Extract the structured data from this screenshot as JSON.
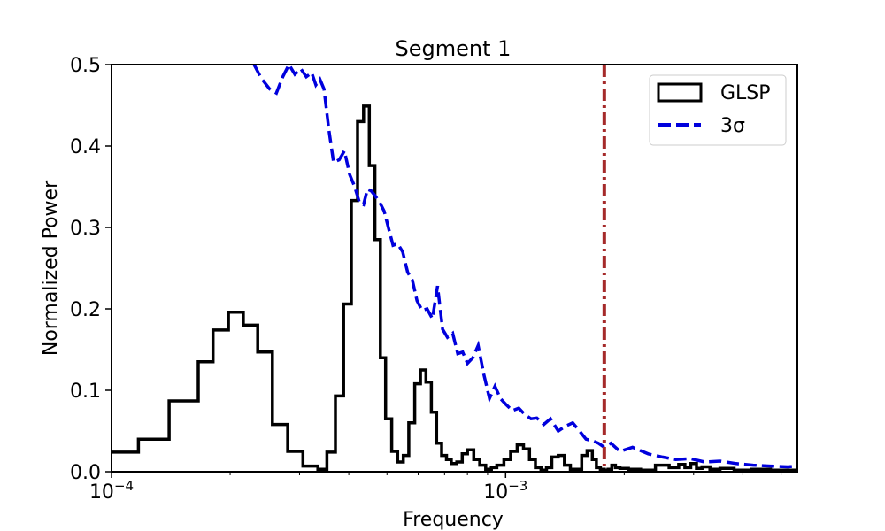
{
  "chart_data": {
    "type": "line",
    "title": "Segment 1",
    "xlabel": "Frequency",
    "ylabel": "Normalized Power",
    "x_scale": "log",
    "xlim": [
      0.0001,
      0.0055
    ],
    "ylim": [
      0,
      0.5
    ],
    "x_ticks": [
      {
        "value": 0.0001,
        "base": "10",
        "exp": "−4"
      },
      {
        "value": 0.001,
        "base": "10",
        "exp": "−3"
      }
    ],
    "y_ticks": [
      0.0,
      0.1,
      0.2,
      0.3,
      0.4,
      0.5
    ],
    "y_tick_labels": [
      "0.0",
      "0.1",
      "0.2",
      "0.3",
      "0.4",
      "0.5"
    ],
    "grid": false,
    "legend_position": "top-right",
    "series": [
      {
        "name": "GLSP",
        "style": "step",
        "color": "#000000",
        "x": [
          0.0001,
          0.000108,
          0.000117,
          0.000128,
          0.00014,
          0.000152,
          0.000166,
          0.000181,
          0.000198,
          0.000216,
          0.000235,
          0.000256,
          0.00028,
          0.000306,
          0.000334,
          0.000352,
          0.00037,
          0.000388,
          0.000406,
          0.000421,
          0.000436,
          0.000451,
          0.000466,
          0.000481,
          0.000496,
          0.000514,
          0.000532,
          0.00055,
          0.000568,
          0.000588,
          0.000608,
          0.000628,
          0.000648,
          0.000668,
          0.000688,
          0.000708,
          0.000728,
          0.000752,
          0.000776,
          0.0008,
          0.00083,
          0.00086,
          0.00089,
          0.00092,
          0.00095,
          0.00099,
          0.00103,
          0.00107,
          0.00111,
          0.00115,
          0.00119,
          0.00123,
          0.00127,
          0.00131,
          0.00136,
          0.00141,
          0.00146,
          0.00151,
          0.00156,
          0.00161,
          0.00166,
          0.0017,
          0.00174,
          0.00178,
          0.00182,
          0.00186,
          0.0019,
          0.00195,
          0.00205,
          0.0022,
          0.0024,
          0.0026,
          0.00275,
          0.00285,
          0.00295,
          0.00305,
          0.00315,
          0.0033,
          0.0035,
          0.0038,
          0.0042,
          0.0047,
          0.0055
        ],
        "y": [
          0.024,
          0.024,
          0.04,
          0.04,
          0.087,
          0.087,
          0.135,
          0.174,
          0.196,
          0.18,
          0.147,
          0.058,
          0.025,
          0.007,
          0.003,
          0.024,
          0.093,
          0.206,
          0.333,
          0.43,
          0.449,
          0.376,
          0.285,
          0.14,
          0.065,
          0.025,
          0.012,
          0.02,
          0.06,
          0.108,
          0.125,
          0.11,
          0.073,
          0.035,
          0.02,
          0.015,
          0.01,
          0.012,
          0.022,
          0.027,
          0.015,
          0.008,
          0.003,
          0.005,
          0.008,
          0.015,
          0.025,
          0.033,
          0.028,
          0.015,
          0.005,
          0.002,
          0.005,
          0.018,
          0.02,
          0.008,
          0.003,
          0.003,
          0.02,
          0.026,
          0.015,
          0.005,
          0.003,
          0.002,
          0.003,
          0.008,
          0.005,
          0.004,
          0.003,
          0.002,
          0.008,
          0.005,
          0.009,
          0.005,
          0.01,
          0.004,
          0.006,
          0.003,
          0.004,
          0.002,
          0.003,
          0.002,
          0.002
        ]
      },
      {
        "name": "3σ",
        "style": "dashed",
        "color": "#0000dd",
        "x": [
          0.00023,
          0.00024,
          0.000252,
          0.000262,
          0.000272,
          0.000282,
          0.000292,
          0.000302,
          0.000312,
          0.000322,
          0.00033,
          0.000338,
          0.000346,
          0.000356,
          0.000366,
          0.000378,
          0.00039,
          0.000402,
          0.000414,
          0.000426,
          0.000436,
          0.000446,
          0.000456,
          0.000468,
          0.00048,
          0.000492,
          0.000504,
          0.000518,
          0.000532,
          0.000548,
          0.000564,
          0.00058,
          0.000596,
          0.000614,
          0.000632,
          0.000652,
          0.000672,
          0.000692,
          0.000712,
          0.000734,
          0.000756,
          0.000778,
          0.0008,
          0.000826,
          0.000852,
          0.00088,
          0.00091,
          0.00094,
          0.00097,
          0.001,
          0.00104,
          0.00108,
          0.00112,
          0.00116,
          0.0012,
          0.00125,
          0.0013,
          0.00136,
          0.00142,
          0.00148,
          0.00154,
          0.0016,
          0.00166,
          0.00172,
          0.00178,
          0.00185,
          0.00195,
          0.0021,
          0.0023,
          0.0025,
          0.0027,
          0.00295,
          0.0032,
          0.0035,
          0.00385,
          0.00425,
          0.0047,
          0.0052,
          0.0055
        ],
        "y": [
          0.5,
          0.483,
          0.47,
          0.465,
          0.485,
          0.5,
          0.488,
          0.495,
          0.485,
          0.49,
          0.475,
          0.482,
          0.47,
          0.42,
          0.38,
          0.383,
          0.394,
          0.365,
          0.35,
          0.33,
          0.328,
          0.347,
          0.345,
          0.338,
          0.33,
          0.32,
          0.3,
          0.278,
          0.28,
          0.27,
          0.245,
          0.235,
          0.21,
          0.198,
          0.2,
          0.188,
          0.228,
          0.175,
          0.165,
          0.17,
          0.145,
          0.147,
          0.133,
          0.14,
          0.155,
          0.12,
          0.09,
          0.105,
          0.09,
          0.083,
          0.075,
          0.078,
          0.07,
          0.065,
          0.066,
          0.058,
          0.065,
          0.05,
          0.056,
          0.06,
          0.05,
          0.04,
          0.038,
          0.035,
          0.03,
          0.035,
          0.025,
          0.03,
          0.022,
          0.018,
          0.015,
          0.016,
          0.012,
          0.013,
          0.01,
          0.008,
          0.007,
          0.006,
          0.007
        ]
      }
    ],
    "vline": {
      "x": 0.00178,
      "color": "#a52a2a",
      "style": "dash-dot"
    }
  }
}
